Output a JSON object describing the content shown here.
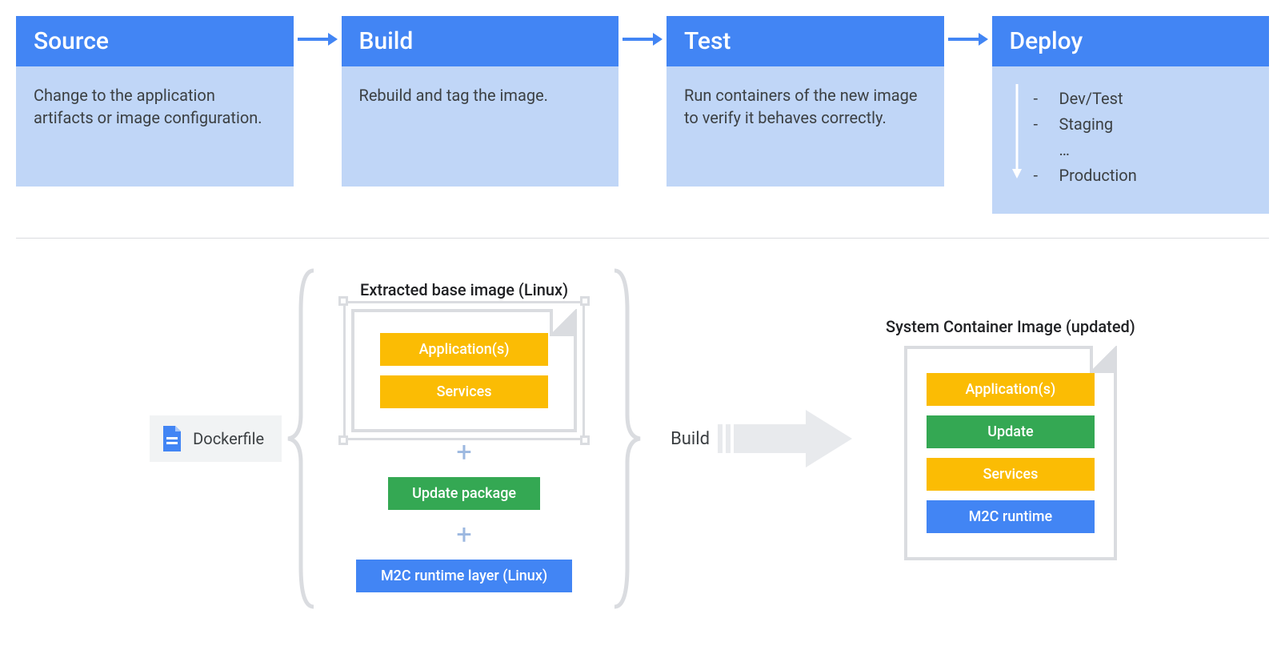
{
  "colors": {
    "header_bg": "#4285f4",
    "header_text": "#ffffff",
    "body_bg": "#c0d6f7",
    "body_text": "#3c4043",
    "arrow": "#4285f4",
    "divider": "#dadce0",
    "chip_bg": "#f1f3f4",
    "doc_border": "#dadce0",
    "amber": "#fbbc04",
    "green": "#34a853",
    "blue": "#4285f4",
    "plus": "#9cb8e0",
    "grey_arrow": "#e8eaed",
    "deploy_arrow": "#ffffff"
  },
  "pipeline": {
    "stages": [
      {
        "title": "Source",
        "body": "Change to the application artifacts or image configuration."
      },
      {
        "title": "Build",
        "body": "Rebuild and tag the image."
      },
      {
        "title": "Test",
        "body": "Run containers of the new image to verify it behaves correctly."
      },
      {
        "title": "Deploy",
        "body": "",
        "items": [
          "Dev/Test",
          "Staging"
        ],
        "ellipsis": "…",
        "final": "Production"
      }
    ]
  },
  "lower": {
    "dockerfile_label": "Dockerfile",
    "extracted_title": "Extracted base image (Linux)",
    "extracted_layers": [
      {
        "label": "Application(s)",
        "color": "amber"
      },
      {
        "label": "Services",
        "color": "amber"
      }
    ],
    "update_layer": {
      "label": "Update package",
      "color": "green"
    },
    "runtime_layer": {
      "label": "M2C runtime layer (Linux)",
      "color": "blue"
    },
    "build_label": "Build",
    "result_title": "System Container Image (updated)",
    "result_layers": [
      {
        "label": "Application(s)",
        "color": "amber"
      },
      {
        "label": "Update",
        "color": "green"
      },
      {
        "label": "Services",
        "color": "amber"
      },
      {
        "label": "M2C runtime",
        "color": "blue"
      }
    ]
  }
}
